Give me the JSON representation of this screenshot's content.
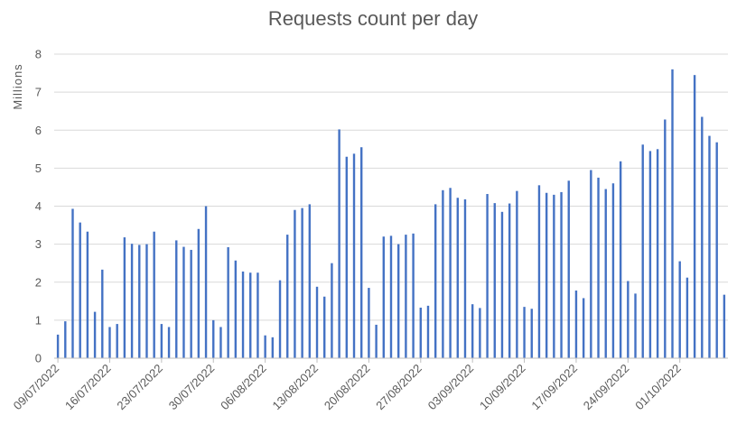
{
  "chart_data": {
    "type": "bar",
    "title": "Requests count per day",
    "ylabel": "Millions",
    "xlabel": "",
    "ylim": [
      0,
      8
    ],
    "yticks": [
      "0",
      "1",
      "2",
      "3",
      "4",
      "5",
      "6",
      "7",
      "8"
    ],
    "x_tick_labels": [
      "09/07/2022",
      "16/07/2022",
      "23/07/2022",
      "30/07/2022",
      "06/08/2022",
      "13/08/2022",
      "20/08/2022",
      "27/08/2022",
      "03/09/2022",
      "10/09/2022",
      "17/09/2022",
      "24/09/2022",
      "01/10/2022"
    ],
    "x_start": "09/07/2022",
    "grid": true,
    "bar_color": "#4472c4",
    "values": [
      0.62,
      0.97,
      3.93,
      3.57,
      3.33,
      1.22,
      2.33,
      0.82,
      0.9,
      3.18,
      3.01,
      2.98,
      3.0,
      3.33,
      0.9,
      0.82,
      3.1,
      2.93,
      2.85,
      3.4,
      4.0,
      1.0,
      0.82,
      2.92,
      2.57,
      2.28,
      2.25,
      2.25,
      0.6,
      0.55,
      2.05,
      3.25,
      3.9,
      3.95,
      4.05,
      1.88,
      1.62,
      2.5,
      6.02,
      5.3,
      5.38,
      5.55,
      1.85,
      0.88,
      3.2,
      3.22,
      3.0,
      3.25,
      3.28,
      1.33,
      1.38,
      4.05,
      4.42,
      4.48,
      4.22,
      4.18,
      1.42,
      1.32,
      4.32,
      4.08,
      3.85,
      4.07,
      4.4,
      1.35,
      1.3,
      4.55,
      4.35,
      4.3,
      4.37,
      4.67,
      1.78,
      1.58,
      4.95,
      4.75,
      4.45,
      4.6,
      5.18,
      2.03,
      1.7,
      5.62,
      5.45,
      5.5,
      6.28,
      7.6,
      2.55,
      2.12,
      7.45,
      6.35,
      5.85,
      5.68,
      1.67
    ]
  }
}
